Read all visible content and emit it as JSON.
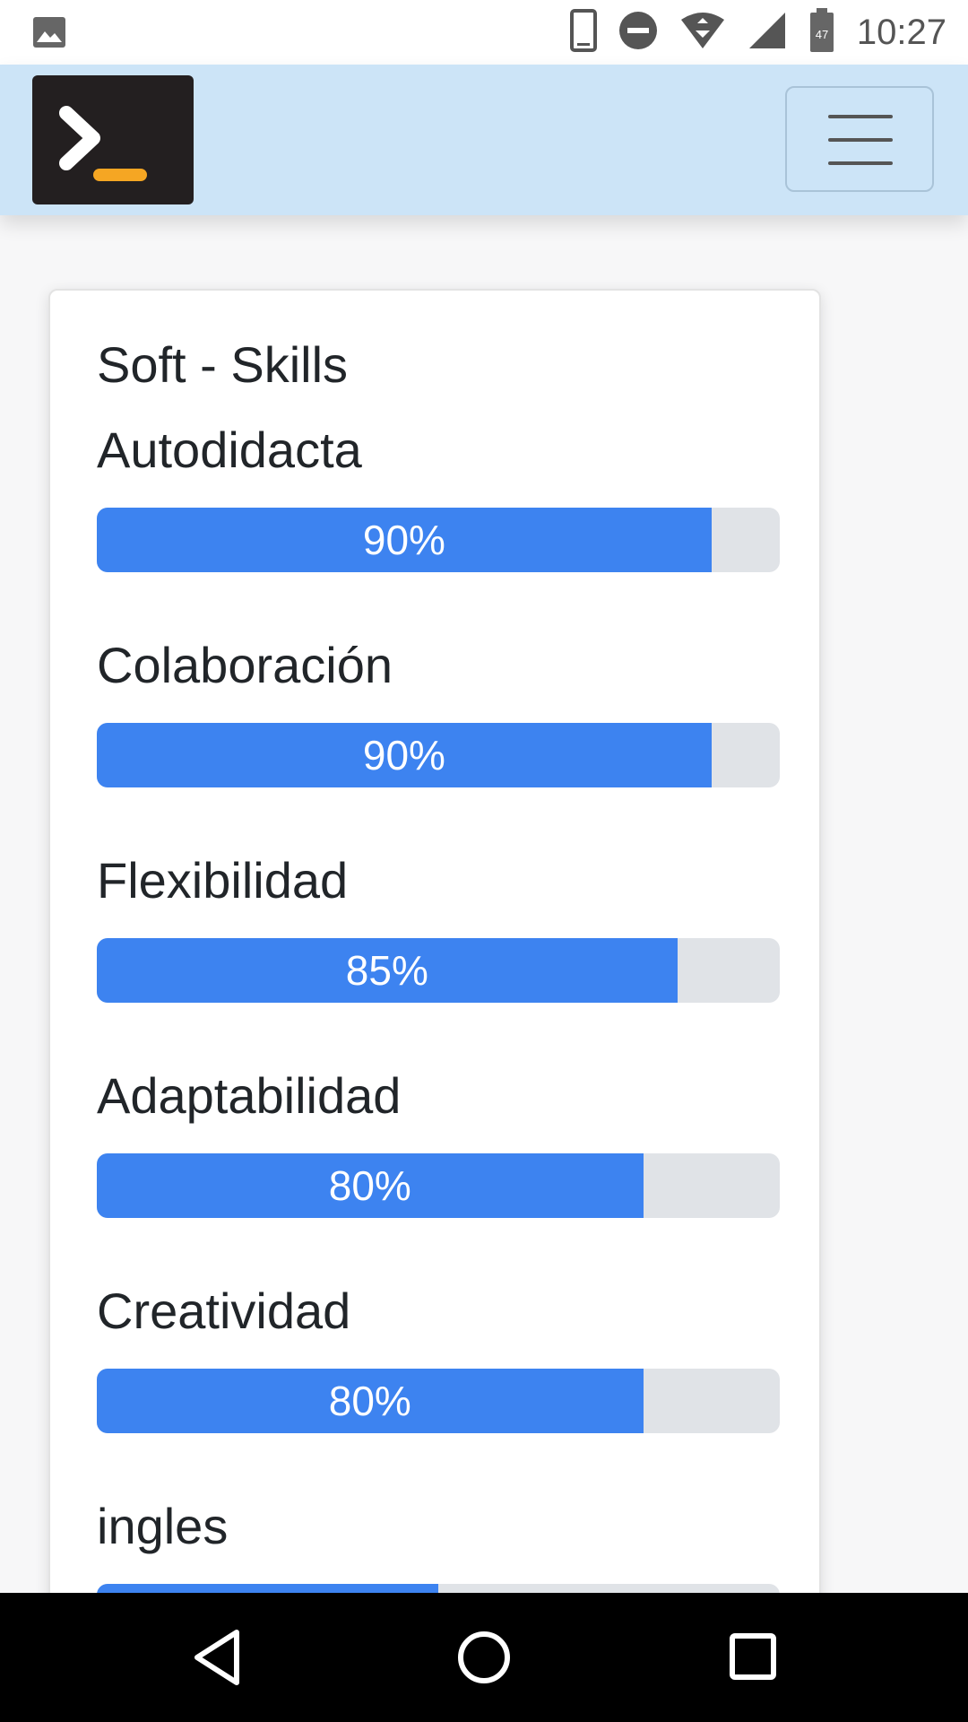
{
  "status_bar": {
    "time": "10:27",
    "battery_level": "47",
    "icons": [
      "image-icon",
      "phone-icon",
      "do-not-disturb-icon",
      "wifi-icon",
      "signal-icon",
      "battery-icon"
    ]
  },
  "navbar": {
    "logo_icon": "terminal-icon",
    "menu_icon": "hamburger-menu-icon",
    "colors": {
      "background": "#cce4f7",
      "logo_bg": "#231f20",
      "logo_accent": "#f5a623"
    }
  },
  "card": {
    "title": "Soft - Skills",
    "skills": [
      {
        "name": "Autodidacta",
        "percent": 90,
        "label": "90%"
      },
      {
        "name": "Colaboración",
        "percent": 90,
        "label": "90%"
      },
      {
        "name": "Flexibilidad",
        "percent": 85,
        "label": "85%"
      },
      {
        "name": "Adaptabilidad",
        "percent": 80,
        "label": "80%"
      },
      {
        "name": "Creatividad",
        "percent": 80,
        "label": "80%"
      },
      {
        "name": "ingles",
        "percent": 50,
        "label": ""
      }
    ],
    "colors": {
      "progress_fill": "#3d83f0",
      "progress_track": "#e0e3e7"
    }
  },
  "system_nav": {
    "icons": [
      "back-icon",
      "home-icon",
      "recents-icon"
    ]
  }
}
